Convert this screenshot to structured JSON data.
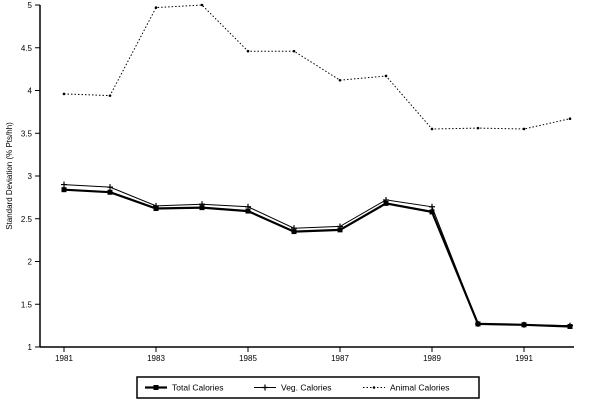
{
  "chart_data": {
    "type": "line",
    "title": "",
    "xlabel": "",
    "ylabel": "Standard Deviation (% Pts/hh)",
    "x": [
      1981,
      1982,
      1983,
      1984,
      1985,
      1986,
      1987,
      1988,
      1989,
      1990,
      1991,
      1992
    ],
    "xticks": [
      1981,
      1983,
      1985,
      1987,
      1989,
      1991
    ],
    "xtick_labels": [
      "1981",
      "1983",
      "1985",
      "1987",
      "1989",
      "1991"
    ],
    "xlim": [
      1981,
      1992
    ],
    "yticks": [
      1,
      1.5,
      2,
      2.5,
      3,
      3.5,
      4,
      4.5,
      5
    ],
    "ytick_labels": [
      "1",
      "1.5",
      "2",
      "2.5",
      "3",
      "3.5",
      "4",
      "4.5",
      "5"
    ],
    "ylim": [
      1,
      5
    ],
    "grid": false,
    "legend_position": "bottom",
    "series": [
      {
        "name": "Total Calories",
        "values": [
          2.84,
          2.81,
          2.62,
          2.63,
          2.59,
          2.35,
          2.37,
          2.68,
          2.58,
          1.27,
          1.26,
          1.24
        ],
        "style": "solid",
        "marker": "square",
        "color": "#000000"
      },
      {
        "name": "Veg. Calories",
        "values": [
          2.9,
          2.87,
          2.65,
          2.67,
          2.64,
          2.39,
          2.41,
          2.72,
          2.64,
          1.27,
          1.26,
          1.25
        ],
        "style": "solid",
        "marker": "plus",
        "color": "#000000"
      },
      {
        "name": "Animal Calories",
        "values": [
          3.96,
          3.94,
          4.97,
          5.0,
          4.46,
          4.46,
          4.12,
          4.17,
          3.55,
          3.56,
          3.55,
          3.67
        ],
        "style": "dotted",
        "marker": "dot",
        "color": "#000000"
      }
    ]
  }
}
